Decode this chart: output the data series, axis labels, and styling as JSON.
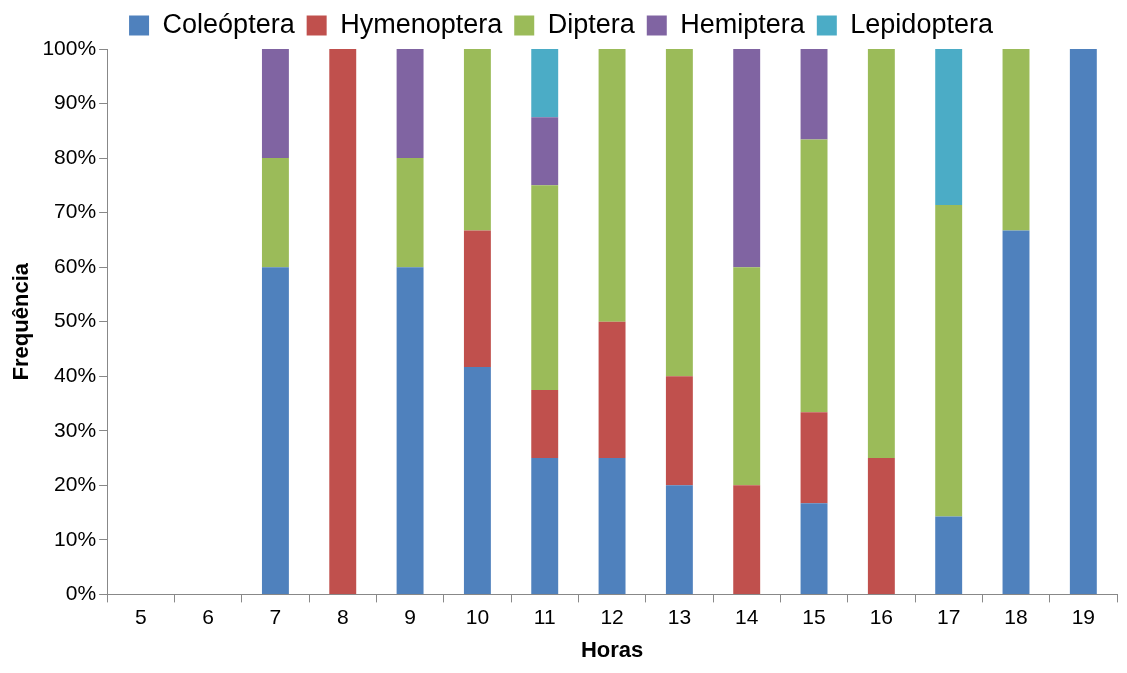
{
  "chart_data": {
    "type": "bar",
    "stacked": true,
    "xlabel": "Horas",
    "ylabel": "Frequência",
    "categories": [
      "5",
      "6",
      "7",
      "8",
      "9",
      "10",
      "11",
      "12",
      "13",
      "14",
      "15",
      "16",
      "17",
      "18",
      "19"
    ],
    "series": [
      {
        "name": "Coleóptera",
        "color": "#4f81bd",
        "values": [
          null,
          null,
          60,
          null,
          60,
          41.7,
          25,
          25,
          20,
          null,
          16.7,
          null,
          14.3,
          66.7,
          100
        ]
      },
      {
        "name": "Hymenoptera",
        "color": "#c0504d",
        "values": [
          null,
          null,
          null,
          100,
          null,
          25,
          12.5,
          25,
          20,
          20,
          16.7,
          25,
          null,
          null,
          null
        ]
      },
      {
        "name": "Diptera",
        "color": "#9bbb59",
        "values": [
          null,
          null,
          20,
          null,
          20,
          33.3,
          37.5,
          50,
          60,
          40,
          50,
          75,
          57.1,
          33.3,
          null
        ]
      },
      {
        "name": "Hemiptera",
        "color": "#8064a2",
        "values": [
          null,
          null,
          20,
          null,
          20,
          null,
          12.5,
          null,
          null,
          40,
          16.7,
          null,
          null,
          null,
          null
        ]
      },
      {
        "name": "Lepidoptera",
        "color": "#4bacc6",
        "values": [
          null,
          null,
          null,
          null,
          null,
          null,
          12.5,
          null,
          null,
          null,
          null,
          null,
          28.6,
          null,
          null
        ]
      }
    ],
    "ylim": [
      0,
      100
    ],
    "yticks": [
      {
        "value": 0,
        "label": "0%"
      },
      {
        "value": 10,
        "label": "10%"
      },
      {
        "value": 20,
        "label": "20%"
      },
      {
        "value": 30,
        "label": "30%"
      },
      {
        "value": 40,
        "label": "40%"
      },
      {
        "value": 50,
        "label": "50%"
      },
      {
        "value": 60,
        "label": "60%"
      },
      {
        "value": 70,
        "label": "70%"
      },
      {
        "value": 80,
        "label": "80%"
      },
      {
        "value": 90,
        "label": "90%"
      },
      {
        "value": 100,
        "label": "100%"
      }
    ],
    "grid": false,
    "legend": "top"
  }
}
